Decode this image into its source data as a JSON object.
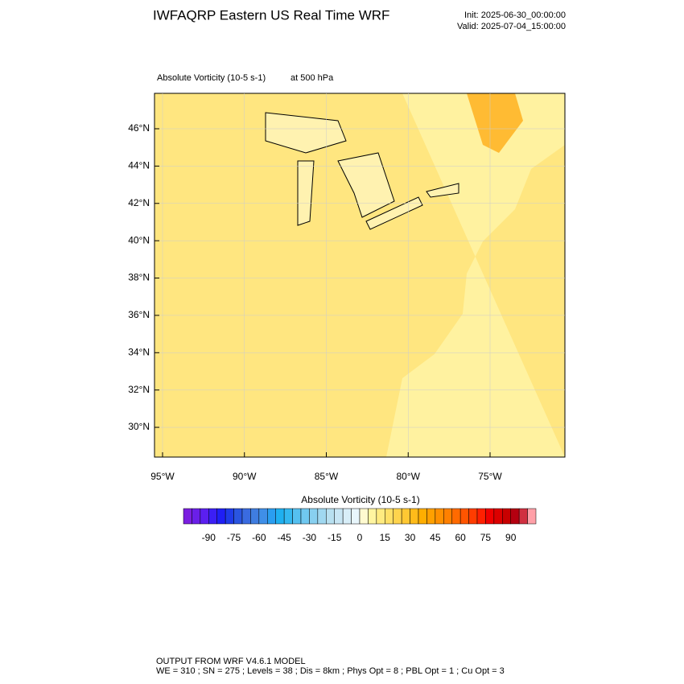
{
  "header": {
    "title": "IWFAQRP Eastern US Real Time WRF",
    "init": "Init: 2025-06-30_00:00:00",
    "valid": "Valid: 2025-07-04_15:00:00"
  },
  "map": {
    "field": "Absolute Vorticity   (10-5 s-1)",
    "level": "at   500 hPa",
    "lat_ticks": [
      {
        "value": 30,
        "label": "30°N"
      },
      {
        "value": 32,
        "label": "32°N"
      },
      {
        "value": 34,
        "label": "34°N"
      },
      {
        "value": 36,
        "label": "36°N"
      },
      {
        "value": 38,
        "label": "38°N"
      },
      {
        "value": 40,
        "label": "40°N"
      },
      {
        "value": 42,
        "label": "42°N"
      },
      {
        "value": 44,
        "label": "44°N"
      },
      {
        "value": 46,
        "label": "46°N"
      }
    ],
    "lon_ticks": [
      {
        "value": -95,
        "label": "95°W"
      },
      {
        "value": -90,
        "label": "90°W"
      },
      {
        "value": -85,
        "label": "85°W"
      },
      {
        "value": -80,
        "label": "80°W"
      },
      {
        "value": -75,
        "label": "75°W"
      }
    ]
  },
  "colorbar": {
    "title": "Absolute Vorticity  (10-5 s-1)",
    "range": [
      -105,
      105
    ],
    "ticks": [
      -90,
      -75,
      -60,
      -45,
      -30,
      -15,
      0,
      15,
      30,
      45,
      60,
      75,
      90
    ],
    "colors": [
      "#7b1fe0",
      "#6a1fe8",
      "#5b1ff0",
      "#3b1ff5",
      "#1f1ff5",
      "#1f3be8",
      "#2a55e0",
      "#3a6be0",
      "#3f7de0",
      "#3f8fe8",
      "#2a9ef0",
      "#1fb0f0",
      "#33b8f0",
      "#55c0f0",
      "#70c8f0",
      "#88d0f0",
      "#a0d8f0",
      "#b8e0f0",
      "#c8e6f4",
      "#d8eef8",
      "#e8f6fc",
      "#fffad0",
      "#fff5a0",
      "#ffeb80",
      "#ffe066",
      "#ffd44d",
      "#ffc833",
      "#ffbb1a",
      "#ffae00",
      "#ffa000",
      "#ff9000",
      "#ff8000",
      "#ff6a00",
      "#ff5500",
      "#ff3c00",
      "#ff2000",
      "#f00000",
      "#dc0000",
      "#c80000",
      "#b40010",
      "#d03040",
      "#ffa0a8"
    ]
  },
  "footer": {
    "line1": "OUTPUT FROM WRF V4.6.1 MODEL",
    "line2": "WE = 310 ; SN = 275 ; Levels = 38 ; Dis = 8km ; Phys Opt = 8 ; PBL Opt = 1 ; Cu Opt = 3"
  }
}
